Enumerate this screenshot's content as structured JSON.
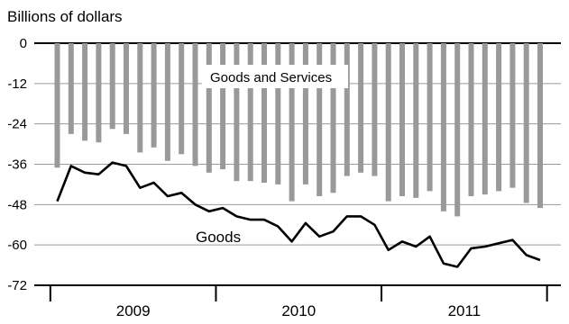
{
  "chart_data": {
    "type": "bar+line",
    "title": "",
    "ylabel": "Billions of dollars",
    "xlabel": "",
    "ylim": [
      -72,
      0
    ],
    "y_ticks": [
      0,
      -12,
      -24,
      -36,
      -48,
      -60,
      -72
    ],
    "y_tick_labels": [
      "0",
      "-12",
      "-24",
      "-36",
      "-48",
      "-60",
      "-72"
    ],
    "grid": "horizontal",
    "years": [
      "2009",
      "2010",
      "2011"
    ],
    "months_per_year": 12,
    "series": [
      {
        "name": "Goods and Services",
        "type": "bar",
        "color": "#999999",
        "values": [
          -37,
          -27,
          -29,
          -29.5,
          -25.5,
          -27,
          -32.5,
          -31,
          -35,
          -33,
          -36.5,
          -38.5,
          -37.5,
          -41,
          -41,
          -41.5,
          -42,
          -47,
          -42,
          -45.5,
          -44.5,
          -39.5,
          -38.5,
          -39.5,
          -47,
          -45.5,
          -46,
          -44,
          -50,
          -51.5,
          -45.5,
          -45,
          -44,
          -43,
          -47.5,
          -49
        ]
      },
      {
        "name": "Goods",
        "type": "line",
        "color": "#000000",
        "values": [
          -47,
          -36.5,
          -38.5,
          -39,
          -35.5,
          -36.5,
          -43,
          -41.5,
          -45.5,
          -44.5,
          -48,
          -50,
          -49,
          -51.5,
          -52.5,
          -52.5,
          -54.5,
          -59,
          -53.5,
          -57.5,
          -56,
          -51.5,
          -51.5,
          -54,
          -61.5,
          -59,
          -60.5,
          -57.5,
          -65.5,
          -66.5,
          -61,
          -60.5,
          -59.5,
          -58.5,
          -63,
          -64.5
        ]
      }
    ],
    "annotations": {
      "goods_and_services": "Goods and Services",
      "goods": "Goods"
    }
  }
}
